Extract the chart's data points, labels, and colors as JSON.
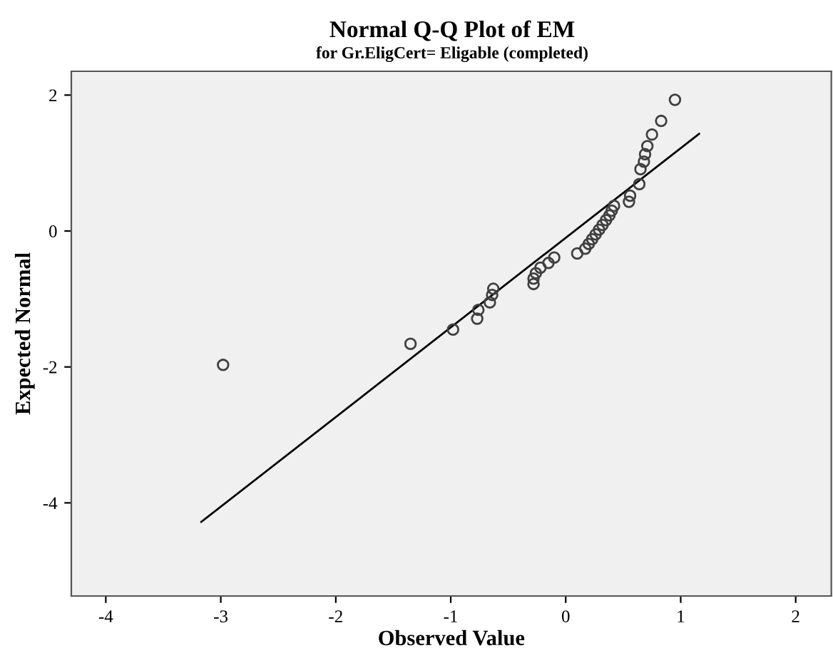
{
  "chart_data": {
    "type": "scatter",
    "title": "Normal Q-Q Plot of EM",
    "subtitle": "for Gr.EligCert= Eligable (completed)",
    "xlabel": "Observed Value",
    "ylabel": "Expected Normal",
    "series": [
      {
        "color": "#404040",
        "marker": "circle",
        "x": [
          -2.98,
          -1.35,
          -0.98,
          -0.77,
          -0.76,
          -0.66,
          -0.64,
          -0.63,
          -0.28,
          -0.28,
          -0.26,
          -0.22,
          -0.15,
          -0.1,
          0.1,
          0.17,
          0.2,
          0.23,
          0.26,
          0.29,
          0.32,
          0.35,
          0.38,
          0.4,
          0.42,
          0.55,
          0.56,
          0.64,
          0.65,
          0.68,
          0.69,
          0.71,
          0.75,
          0.83,
          0.95
        ],
        "values": [
          -1.97,
          -1.66,
          -1.45,
          -1.29,
          -1.16,
          -1.05,
          -0.94,
          -0.85,
          -0.78,
          -0.7,
          -0.62,
          -0.54,
          -0.47,
          -0.39,
          -0.33,
          -0.26,
          -0.19,
          -0.12,
          -0.05,
          0.02,
          0.09,
          0.16,
          0.23,
          0.3,
          0.37,
          0.43,
          0.52,
          0.69,
          0.91,
          1.02,
          1.13,
          1.25,
          1.42,
          1.62,
          1.93
        ]
      },
      {
        "type": "line",
        "color": "#000000",
        "marker": "none",
        "x": [
          -3.17,
          1.16
        ],
        "values": [
          -4.28,
          1.43
        ]
      }
    ],
    "xlim": [
      -4.3,
      2.31
    ],
    "ylim": [
      -5.37,
      2.35
    ],
    "xticks": [
      -4,
      -3,
      -2,
      -1,
      0,
      1,
      2
    ],
    "yticks": [
      -4,
      -2,
      0,
      2
    ],
    "grid": false,
    "legend": false
  }
}
